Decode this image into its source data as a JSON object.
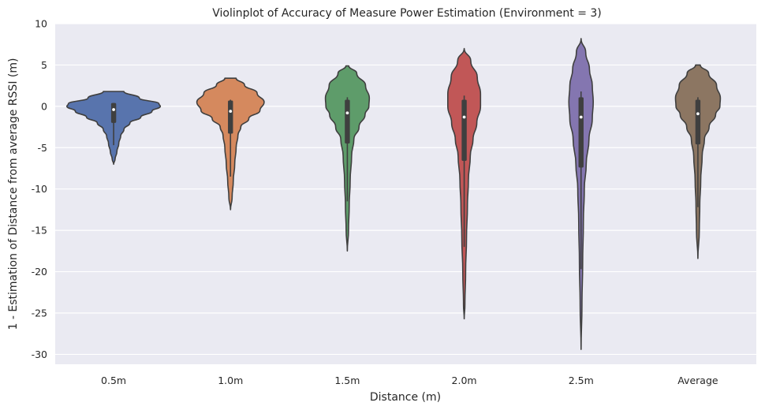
{
  "chart_data": {
    "type": "violin",
    "title": "Violinplot of Accuracy of Measure Power Estimation (Environment = 3)",
    "xlabel": "Distance (m)",
    "ylabel": "1 - Estimation of Distance from average RSSI (m)",
    "ylim": [
      -31.2,
      10
    ],
    "yticks": [
      10,
      5,
      0,
      -5,
      -10,
      -15,
      -20,
      -25,
      -30
    ],
    "grid": true,
    "background_color": "#eaeaf2",
    "categories": [
      "0.5m",
      "1.0m",
      "1.5m",
      "2.0m",
      "2.5m",
      "Average"
    ],
    "series": [
      {
        "color": "#5874ad",
        "min": -7.0,
        "max": 1.8,
        "q1": -2.0,
        "median": -0.4,
        "q3": 0.4,
        "whisker_low": -4.7,
        "whisker_high": 0.4,
        "density": [
          [
            1.8,
            0.22
          ],
          [
            1.0,
            0.55
          ],
          [
            0.3,
            0.97
          ],
          [
            0,
            1.0
          ],
          [
            -0.6,
            0.82
          ],
          [
            -1.3,
            0.58
          ],
          [
            -2.0,
            0.35
          ],
          [
            -2.8,
            0.22
          ],
          [
            -3.6,
            0.15
          ],
          [
            -4.5,
            0.11
          ],
          [
            -5.5,
            0.07
          ],
          [
            -6.4,
            0.03
          ],
          [
            -7.0,
            0.0
          ]
        ]
      },
      {
        "color": "#d5895e",
        "min": -12.5,
        "max": 3.4,
        "q1": -3.3,
        "median": -0.6,
        "q3": 0.7,
        "whisker_low": -8.5,
        "whisker_high": 0.8,
        "density": [
          [
            3.4,
            0.12
          ],
          [
            2.6,
            0.3
          ],
          [
            1.6,
            0.57
          ],
          [
            0.5,
            0.72
          ],
          [
            -0.5,
            0.63
          ],
          [
            -1.5,
            0.39
          ],
          [
            -2.5,
            0.22
          ],
          [
            -3.5,
            0.16
          ],
          [
            -5,
            0.12
          ],
          [
            -7,
            0.09
          ],
          [
            -9,
            0.06
          ],
          [
            -11,
            0.035
          ],
          [
            -12.5,
            0.0
          ]
        ]
      },
      {
        "color": "#5e9c6a",
        "min": -17.5,
        "max": 4.9,
        "q1": -4.5,
        "median": -0.8,
        "q3": 0.8,
        "whisker_low": -11.5,
        "whisker_high": 1.1,
        "density": [
          [
            4.9,
            0.03
          ],
          [
            4.0,
            0.2
          ],
          [
            2.5,
            0.39
          ],
          [
            1.0,
            0.47
          ],
          [
            0,
            0.46
          ],
          [
            -1.0,
            0.38
          ],
          [
            -2.5,
            0.25
          ],
          [
            -4.0,
            0.14
          ],
          [
            -6,
            0.09
          ],
          [
            -9,
            0.06
          ],
          [
            -12,
            0.04
          ],
          [
            -15,
            0.025
          ],
          [
            -17.5,
            0.0
          ]
        ]
      },
      {
        "color": "#c15757",
        "min": -25.7,
        "max": 7.0,
        "q1": -6.6,
        "median": -1.3,
        "q3": 0.8,
        "whisker_low": -17.0,
        "whisker_high": 1.3,
        "density": [
          [
            7.0,
            0.0
          ],
          [
            5.5,
            0.14
          ],
          [
            3.5,
            0.28
          ],
          [
            1.5,
            0.35
          ],
          [
            0,
            0.35
          ],
          [
            -2,
            0.27
          ],
          [
            -4,
            0.19
          ],
          [
            -6,
            0.13
          ],
          [
            -9,
            0.09
          ],
          [
            -12,
            0.07
          ],
          [
            -16,
            0.05
          ],
          [
            -20,
            0.03
          ],
          [
            -24,
            0.015
          ],
          [
            -25.7,
            0.0
          ]
        ]
      },
      {
        "color": "#8476b0",
        "min": -29.4,
        "max": 8.2,
        "q1": -7.4,
        "median": -1.3,
        "q3": 1.1,
        "whisker_low": -19.7,
        "whisker_high": 1.8,
        "density": [
          [
            8.2,
            0.0
          ],
          [
            6.5,
            0.1
          ],
          [
            4.5,
            0.18
          ],
          [
            2.5,
            0.24
          ],
          [
            0.5,
            0.26
          ],
          [
            -1.5,
            0.24
          ],
          [
            -4,
            0.17
          ],
          [
            -7,
            0.11
          ],
          [
            -10,
            0.07
          ],
          [
            -14,
            0.05
          ],
          [
            -19,
            0.035
          ],
          [
            -24,
            0.02
          ],
          [
            -29.4,
            0.0
          ]
        ]
      },
      {
        "color": "#8c7662",
        "min": -18.4,
        "max": 5.0,
        "q1": -4.6,
        "median": -0.9,
        "q3": 0.8,
        "whisker_low": -12.2,
        "whisker_high": 1.1,
        "density": [
          [
            5.0,
            0.05
          ],
          [
            4.0,
            0.23
          ],
          [
            2.5,
            0.4
          ],
          [
            1.0,
            0.48
          ],
          [
            0,
            0.47
          ],
          [
            -1.0,
            0.38
          ],
          [
            -2.5,
            0.24
          ],
          [
            -4.0,
            0.14
          ],
          [
            -6,
            0.09
          ],
          [
            -9,
            0.06
          ],
          [
            -12,
            0.04
          ],
          [
            -15,
            0.03
          ],
          [
            -18.4,
            0.0
          ]
        ]
      }
    ]
  }
}
